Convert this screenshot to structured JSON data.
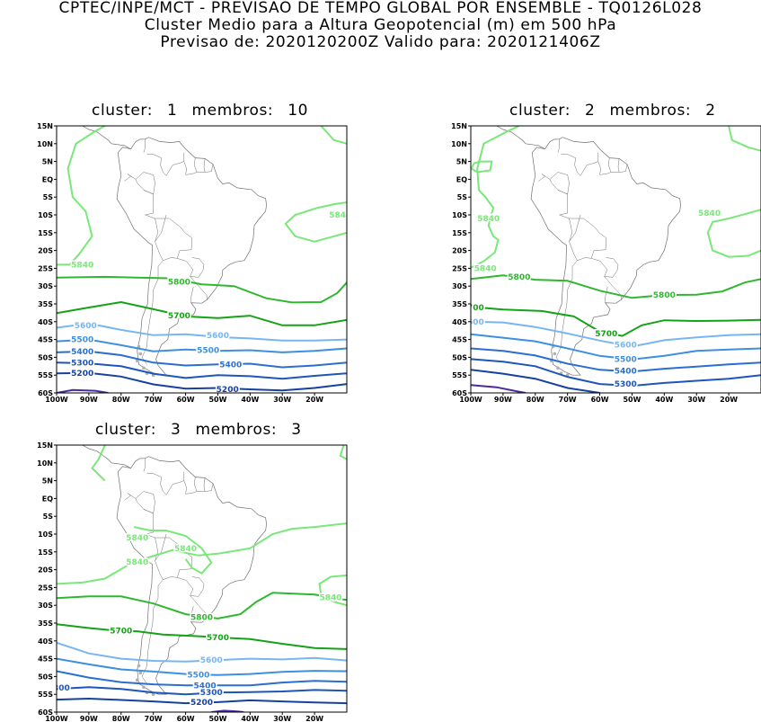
{
  "header": {
    "line1": "CPTEC/INPE/MCT - PREVISAO DE TEMPO GLOBAL POR ENSEMBLE - TQ0126L028",
    "line2": "Cluster Medio para a Altura Geopotencial (m) em 500 hPa",
    "line3": "Previsao de: 2020120200Z    Valido para: 2020121406Z"
  },
  "axis": {
    "lat_labels": [
      "15N",
      "10N",
      "5N",
      "EQ",
      "5S",
      "10S",
      "15S",
      "20S",
      "25S",
      "30S",
      "35S",
      "40S",
      "45S",
      "50S",
      "55S",
      "60S"
    ],
    "lon_labels": [
      "100W",
      "90W",
      "80W",
      "70W",
      "60W",
      "50W",
      "40W",
      "30W",
      "20W"
    ]
  },
  "colors": {
    "c5840": "#79e879",
    "c5800": "#2fb82f",
    "c5700": "#15a315",
    "c5600": "#78b6f0",
    "c5500": "#3d8fe0",
    "c5400": "#2a6fd0",
    "c5300": "#1d55b8",
    "c5200": "#1740a0",
    "c5100": "#4b2a9e",
    "coast": "#707070"
  },
  "panels": [
    {
      "cluster_word": "cluster:",
      "cluster_num": "1",
      "members_word": "membros:",
      "members_num": "10",
      "contour_labels": [
        {
          "text": "5840",
          "level": "c5840"
        },
        {
          "text": "5840",
          "level": "c5840"
        },
        {
          "text": "5800",
          "level": "c5800"
        },
        {
          "text": "5700",
          "level": "c5700"
        },
        {
          "text": "5600",
          "level": "c5600"
        },
        {
          "text": "5600",
          "level": "c5600"
        },
        {
          "text": "5500",
          "level": "c5500"
        },
        {
          "text": "5500",
          "level": "c5500"
        },
        {
          "text": "5400",
          "level": "c5400"
        },
        {
          "text": "5400",
          "level": "c5400"
        },
        {
          "text": "5300",
          "level": "c5300"
        },
        {
          "text": "5200",
          "level": "c5200"
        },
        {
          "text": "5200",
          "level": "c5200"
        }
      ]
    },
    {
      "cluster_word": "cluster:",
      "cluster_num": "2",
      "members_word": "membros:",
      "members_num": "2",
      "contour_labels": [
        {
          "text": "5840",
          "level": "c5840"
        },
        {
          "text": "5840",
          "level": "c5840"
        },
        {
          "text": "5840",
          "level": "c5840"
        },
        {
          "text": "5800",
          "level": "c5800"
        },
        {
          "text": "5800",
          "level": "c5800"
        },
        {
          "text": "700",
          "level": "c5700"
        },
        {
          "text": "5700",
          "level": "c5700"
        },
        {
          "text": "600",
          "level": "c5600"
        },
        {
          "text": "5600",
          "level": "c5600"
        },
        {
          "text": "5500",
          "level": "c5500"
        },
        {
          "text": "5400",
          "level": "c5400"
        },
        {
          "text": "5300",
          "level": "c5300"
        }
      ]
    },
    {
      "cluster_word": "cluster:",
      "cluster_num": "3",
      "members_word": "membros:",
      "members_num": "3",
      "contour_labels": [
        {
          "text": "5840",
          "level": "c5840"
        },
        {
          "text": "5840",
          "level": "c5840"
        },
        {
          "text": "5840",
          "level": "c5840"
        },
        {
          "text": "5840",
          "level": "c5840"
        },
        {
          "text": "5800",
          "level": "c5800"
        },
        {
          "text": "5700",
          "level": "c5700"
        },
        {
          "text": "5700",
          "level": "c5700"
        },
        {
          "text": "5600",
          "level": "c5600"
        },
        {
          "text": "5500",
          "level": "c5500"
        },
        {
          "text": "5400",
          "level": "c5400"
        },
        {
          "text": "300",
          "level": "c5300"
        },
        {
          "text": "5300",
          "level": "c5300"
        },
        {
          "text": "5200",
          "level": "c5200"
        }
      ]
    }
  ]
}
